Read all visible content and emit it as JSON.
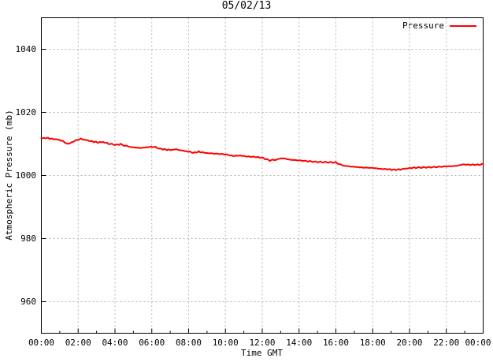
{
  "chart_data": {
    "type": "line",
    "title": "05/02/13",
    "xlabel": "Time GMT",
    "ylabel": "Atmospheric Pressure (mb)",
    "grid": true,
    "legend_position": "top-right-inside",
    "legend": [
      {
        "name": "Pressure",
        "color": "#ff0000"
      }
    ],
    "xlim": [
      0,
      24
    ],
    "ylim": [
      950,
      1050
    ],
    "xticks": {
      "positions": [
        0,
        2,
        4,
        6,
        8,
        10,
        12,
        14,
        16,
        18,
        20,
        22,
        24
      ],
      "labels": [
        "00:00",
        "02:00",
        "04:00",
        "06:00",
        "08:00",
        "10:00",
        "12:00",
        "14:00",
        "16:00",
        "18:00",
        "20:00",
        "22:00",
        "00:00"
      ],
      "minor": [
        1,
        3,
        5,
        7,
        9,
        11,
        13,
        15,
        17,
        19,
        21,
        23
      ]
    },
    "yticks": {
      "positions": [
        960,
        980,
        1000,
        1020,
        1040
      ],
      "labels": [
        "960",
        "980",
        "1000",
        "1020",
        "1040"
      ]
    },
    "series": [
      {
        "name": "Pressure",
        "color": "#ff0000",
        "units": "mb",
        "x_units": "hours GMT",
        "points": [
          [
            0.0,
            1011.8
          ],
          [
            0.3,
            1011.9
          ],
          [
            0.6,
            1011.6
          ],
          [
            0.9,
            1011.4
          ],
          [
            1.2,
            1010.8
          ],
          [
            1.45,
            1009.9
          ],
          [
            1.65,
            1010.5
          ],
          [
            1.9,
            1011.2
          ],
          [
            2.15,
            1011.6
          ],
          [
            2.45,
            1011.2
          ],
          [
            2.75,
            1010.8
          ],
          [
            3.05,
            1010.5
          ],
          [
            3.35,
            1010.6
          ],
          [
            3.65,
            1010.1
          ],
          [
            4.0,
            1009.7
          ],
          [
            4.3,
            1009.9
          ],
          [
            4.65,
            1009.3
          ],
          [
            5.0,
            1008.9
          ],
          [
            5.4,
            1008.7
          ],
          [
            5.8,
            1009.0
          ],
          [
            6.1,
            1009.1
          ],
          [
            6.45,
            1008.5
          ],
          [
            6.75,
            1008.2
          ],
          [
            7.05,
            1008.1
          ],
          [
            7.35,
            1008.3
          ],
          [
            7.7,
            1007.8
          ],
          [
            8.0,
            1007.6
          ],
          [
            8.25,
            1007.2
          ],
          [
            8.55,
            1007.5
          ],
          [
            9.0,
            1007.1
          ],
          [
            9.5,
            1006.9
          ],
          [
            10.0,
            1006.7
          ],
          [
            10.4,
            1006.2
          ],
          [
            10.8,
            1006.3
          ],
          [
            11.2,
            1006.0
          ],
          [
            11.6,
            1005.9
          ],
          [
            12.0,
            1005.6
          ],
          [
            12.4,
            1004.8
          ],
          [
            12.75,
            1005.0
          ],
          [
            13.1,
            1005.5
          ],
          [
            13.5,
            1005.0
          ],
          [
            14.0,
            1004.8
          ],
          [
            14.5,
            1004.5
          ],
          [
            15.0,
            1004.3
          ],
          [
            15.5,
            1004.2
          ],
          [
            16.0,
            1004.1
          ],
          [
            16.35,
            1003.2
          ],
          [
            16.7,
            1002.9
          ],
          [
            17.1,
            1002.7
          ],
          [
            17.5,
            1002.5
          ],
          [
            18.0,
            1002.4
          ],
          [
            18.4,
            1002.1
          ],
          [
            18.8,
            1002.0
          ],
          [
            19.1,
            1001.8
          ],
          [
            19.5,
            1001.9
          ],
          [
            19.8,
            1002.2
          ],
          [
            20.1,
            1002.4
          ],
          [
            20.5,
            1002.5
          ],
          [
            21.0,
            1002.6
          ],
          [
            21.5,
            1002.7
          ],
          [
            22.0,
            1002.9
          ],
          [
            22.5,
            1003.0
          ],
          [
            22.9,
            1003.5
          ],
          [
            23.3,
            1003.4
          ],
          [
            23.7,
            1003.4
          ],
          [
            24.0,
            1003.5
          ]
        ]
      }
    ]
  },
  "colors": {
    "background": "#ffffff",
    "grid": "#b4b4b4",
    "border": "#000000",
    "text": "#000000",
    "line": "#ff0000"
  }
}
